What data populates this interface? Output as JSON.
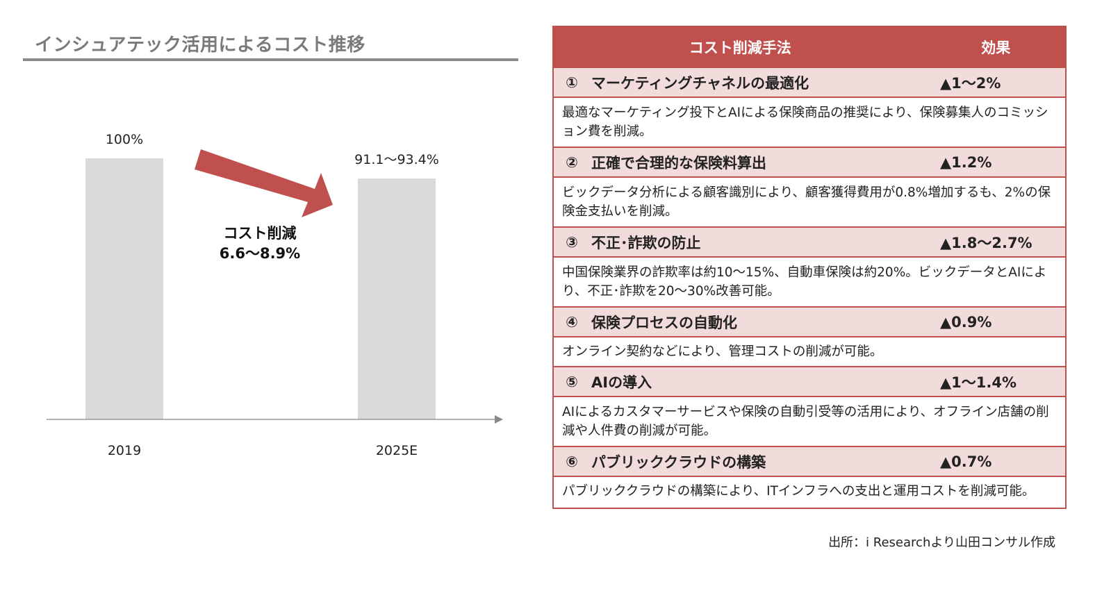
{
  "chart_title": "インシュアテック活用によるコスト推移",
  "chart_data": {
    "type": "bar",
    "categories": [
      "2019",
      "2025E"
    ],
    "values": [
      100,
      92.25
    ],
    "value_labels": [
      "100%",
      "91.1〜93.4%"
    ],
    "annotation": {
      "line1": "コスト削減",
      "line2": "6.6〜8.9%"
    },
    "ylim": [
      0,
      100
    ],
    "bar_color": "#d9d9d9",
    "arrow_color": "#c0504d"
  },
  "table": {
    "header": {
      "method": "コスト削減手法",
      "effect": "効果"
    },
    "rows": [
      {
        "num": "①",
        "name": "マーケティングチャネルの最適化",
        "effect": "▲1〜2%",
        "desc": "最適なマーケティング投下とAIによる保険商品の推奨により、保険募集人のコミッション費を削減。"
      },
      {
        "num": "②",
        "name": "正確で合理的な保険料算出",
        "effect": "▲1.2%",
        "desc": "ビックデータ分析による顧客識別により、顧客獲得費用が0.8%増加するも、2%の保険金支払いを削減。"
      },
      {
        "num": "③",
        "name": "不正･詐欺の防止",
        "effect": "▲1.8〜2.7%",
        "desc": "中国保険業界の詐欺率は約10〜15%、自動車保険は約20%。ビックデータとAIにより、不正･詐欺を20〜30%改善可能。"
      },
      {
        "num": "④",
        "name": "保険プロセスの自動化",
        "effect": "▲0.9%",
        "desc": "オンライン契約などにより、管理コストの削減が可能。"
      },
      {
        "num": "⑤",
        "name": "AIの導入",
        "effect": "▲1〜1.4%",
        "desc": "AIによるカスタマーサービスや保険の自動引受等の活用により、オフライン店舗の削減や人件費の削減が可能。"
      },
      {
        "num": "⑥",
        "name": "パブリッククラウドの構築",
        "effect": "▲0.7%",
        "desc": "パブリッククラウドの構築により、ITインフラへの支出と運用コストを削減可能。"
      }
    ]
  },
  "footnote": "出所：i Researchより山田コンサル作成",
  "colors": {
    "accent": "#c0504d",
    "row_fill": "#f2dcdb",
    "title_gray": "#7a7a7a"
  }
}
